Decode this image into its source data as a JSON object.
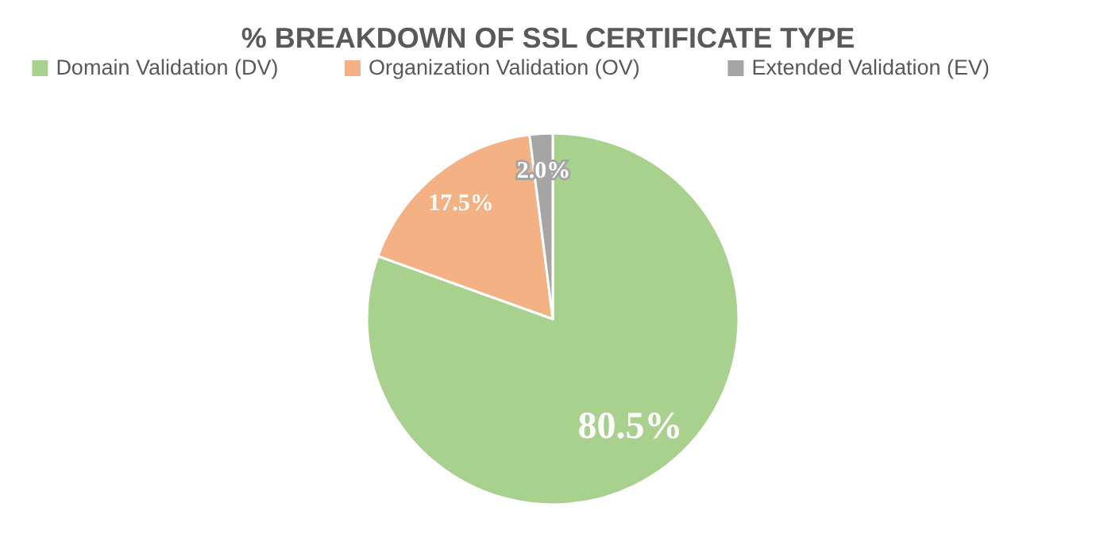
{
  "chart_data": {
    "type": "pie",
    "title": "% BREAKDOWN OF SSL CERTIFICATE TYPE",
    "categories": [
      "Domain Validation (DV)",
      "Organization Validation (OV)",
      "Extended Validation (EV)"
    ],
    "values": [
      80.5,
      17.5,
      2.0
    ],
    "colors": [
      "#a9d18e",
      "#f4b183",
      "#a5a5a5"
    ],
    "value_labels": [
      "80.5%",
      "17.5%",
      "2.0%"
    ],
    "legend": "top"
  }
}
